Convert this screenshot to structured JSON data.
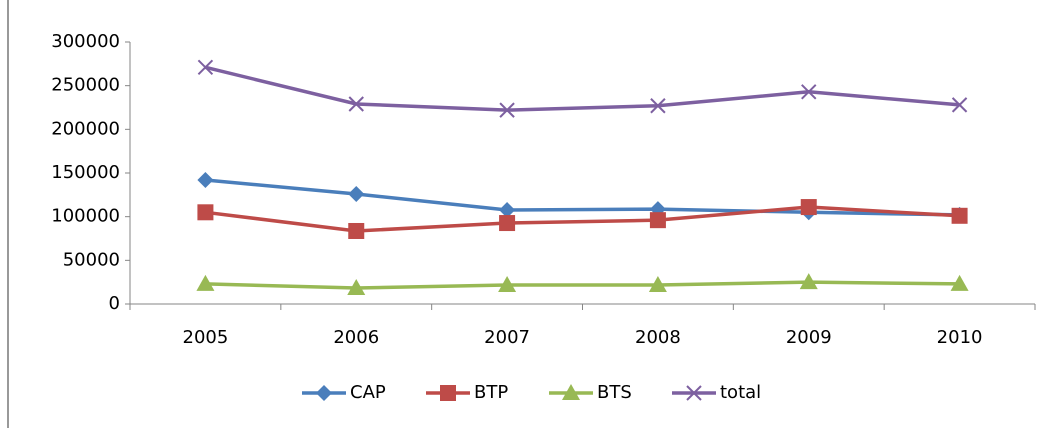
{
  "chart_data": {
    "type": "line",
    "categories": [
      "2005",
      "2006",
      "2007",
      "2008",
      "2009",
      "2010"
    ],
    "series": [
      {
        "name": "CAP",
        "color": "#4a7ebb",
        "marker": "diamond",
        "values": [
          142000,
          126000,
          107600,
          108700,
          105000,
          102000
        ]
      },
      {
        "name": "BTP",
        "color": "#be4b48",
        "marker": "square",
        "values": [
          105000,
          83600,
          92700,
          96000,
          111000,
          101000
        ]
      },
      {
        "name": "BTS",
        "color": "#98b954",
        "marker": "triangle",
        "values": [
          23000,
          18300,
          21800,
          21800,
          25000,
          23000
        ]
      },
      {
        "name": "total",
        "color": "#7d60a0",
        "marker": "x",
        "values": [
          271000,
          229000,
          222000,
          227000,
          243000,
          228000
        ]
      }
    ],
    "ylim": [
      0,
      300000
    ],
    "yticks": [
      0,
      50000,
      100000,
      150000,
      200000,
      250000,
      300000
    ],
    "grid": false,
    "legend": "bottom"
  }
}
